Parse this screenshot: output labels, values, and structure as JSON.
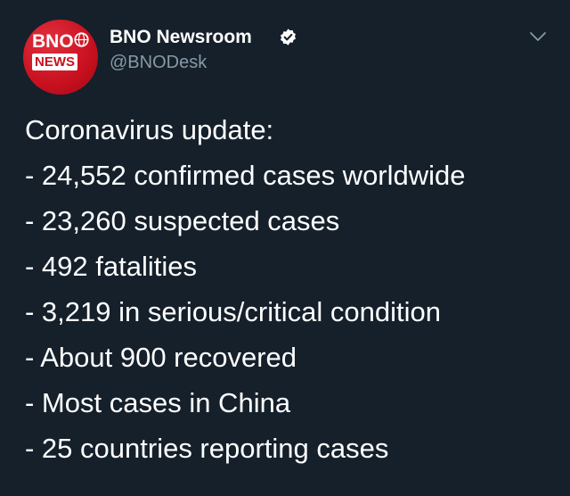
{
  "account": {
    "display_name": "BNO Newsroom",
    "handle": "@BNODesk",
    "verified": true,
    "avatar": {
      "logo_top": "BNO",
      "logo_bottom": "NEWS",
      "bg_color": "#c8101f"
    }
  },
  "tweet": {
    "lines": [
      "Coronavirus update:",
      "- 24,552 confirmed cases worldwide",
      "- 23,260 suspected cases",
      "- 492 fatalities",
      "- 3,219 in serious/critical condition",
      "- About 900 recovered",
      "- Most cases in China",
      "- 25 countries reporting cases"
    ]
  },
  "theme": {
    "background": "#15202b",
    "text": "#ffffff",
    "secondary_text": "#8899a6",
    "accent": "#c8101f"
  },
  "icons": {
    "verified": "verified-badge-icon",
    "menu": "chevron-down-icon"
  }
}
